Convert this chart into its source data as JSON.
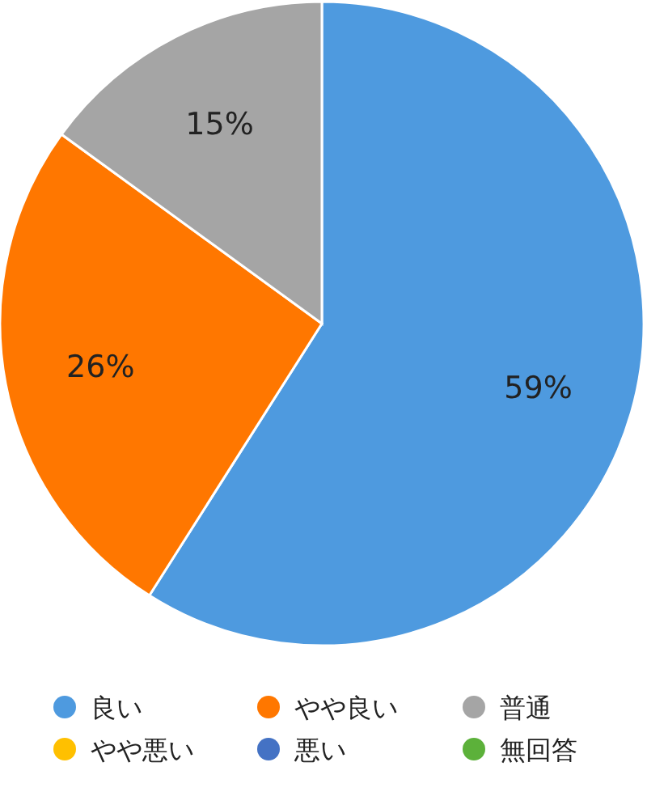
{
  "chart_data": {
    "type": "pie",
    "categories": [
      "良い",
      "やや良い",
      "普通",
      "やや悪い",
      "悪い",
      "無回答"
    ],
    "values": [
      59,
      26,
      15,
      0,
      0,
      0
    ],
    "colors": [
      "#4e9adf",
      "#ff7700",
      "#a5a5a5",
      "#ffc000",
      "#4472c4",
      "#5cb13a"
    ],
    "value_labels": [
      "59%",
      "26%",
      "15%",
      null,
      null,
      null
    ],
    "legend": "bottom"
  }
}
